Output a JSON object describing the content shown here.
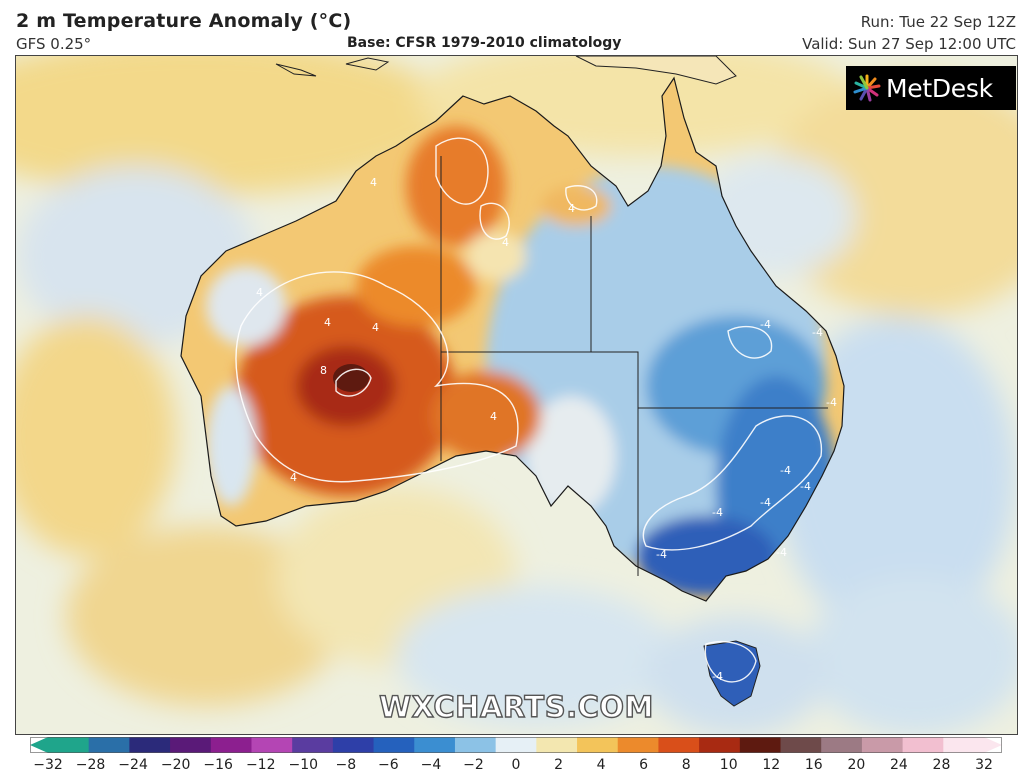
{
  "header": {
    "title": "2 m Temperature Anomaly (°C)",
    "model": "GFS 0.25°",
    "base": "Base: CFSR 1979-2010 climatology",
    "run": "Run: Tue 22 Sep 12Z",
    "valid": "Valid: Sun 27 Sep 12:00 UTC"
  },
  "logo": {
    "text": "MetDesk",
    "icon": "metdesk-star-icon"
  },
  "watermark": "WXCHARTS.COM",
  "contour_labels": [
    "8",
    "4",
    "4",
    "4",
    "4",
    "4",
    "4",
    "4",
    "4",
    "-4",
    "-4",
    "-4",
    "-4",
    "-4",
    "-4",
    "-4",
    "-4",
    "-4",
    "-4"
  ],
  "colorbar": {
    "ticks": [
      "−32",
      "−28",
      "−24",
      "−20",
      "−16",
      "−12",
      "−10",
      "−8",
      "−6",
      "−4",
      "−2",
      "0",
      "2",
      "4",
      "6",
      "8",
      "10",
      "12",
      "16",
      "20",
      "24",
      "28",
      "32"
    ],
    "colors": [
      "#1fa58b",
      "#2a6fa8",
      "#2b2a7a",
      "#5a1a78",
      "#8c1f8f",
      "#b445b4",
      "#5a3ca0",
      "#2e3fa8",
      "#2561bd",
      "#3b8ed1",
      "#8cc2e6",
      "#e6f0f6",
      "#f3e7b0",
      "#f3c45a",
      "#ec8a2c",
      "#d94f1a",
      "#a82a12",
      "#5e1a10",
      "#6e4a4a",
      "#9c7a84",
      "#c99aa8",
      "#f2bfd0",
      "#fbe6ee"
    ],
    "left_arrow": "#1fa58b",
    "right_arrow": "#fbe6ee"
  }
}
